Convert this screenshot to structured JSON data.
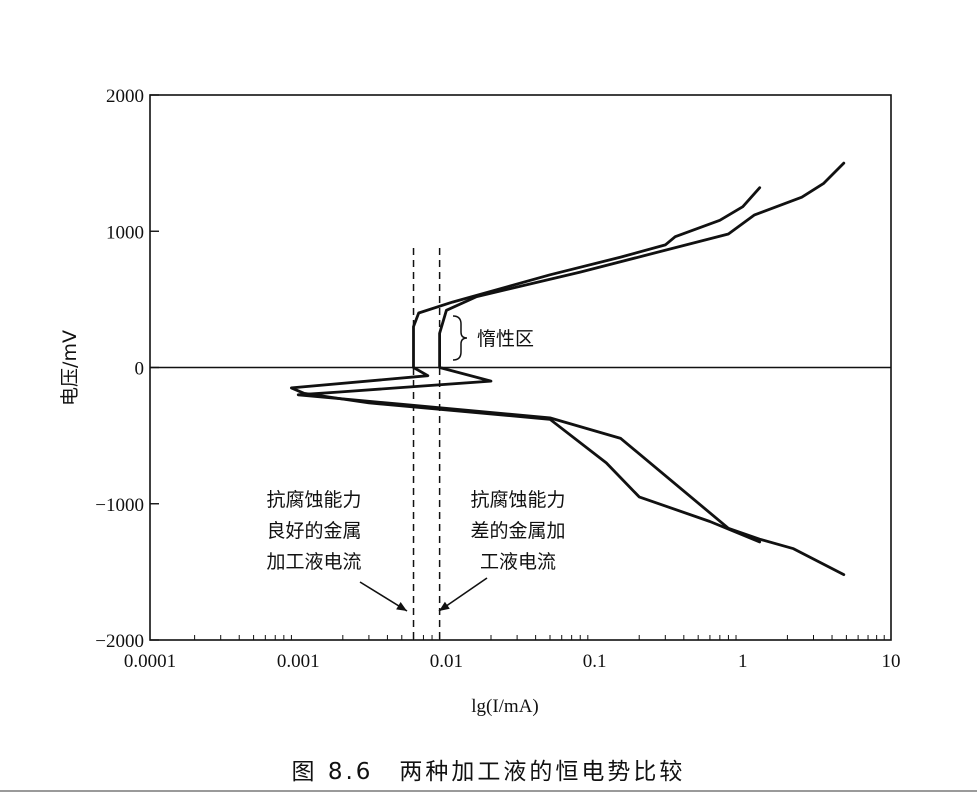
{
  "figure": {
    "caption": "图 8.6　两种加工液的恒电势比较"
  },
  "chart_data": {
    "type": "line",
    "title": "两种加工液的恒电势比较",
    "figure_number": "图 8.6",
    "xlabel": "lg(I/mA)",
    "ylabel": "电压/mV",
    "x_scale": "log",
    "xlim": [
      0.0001,
      10
    ],
    "ylim": [
      -2000,
      2000
    ],
    "x_ticks": [
      "0.0001",
      "0.001",
      "0.01",
      "0.1",
      "1",
      "10"
    ],
    "y_ticks": [
      "2000",
      "1000",
      "0",
      "-1000",
      "-2000"
    ],
    "grid": false,
    "legend": null,
    "reference_lines": [
      {
        "type": "horizontal",
        "y": 0,
        "style": "solid"
      },
      {
        "type": "vertical",
        "x": 0.006,
        "style": "dashed",
        "label": "抗腐蚀能力良好的金属加工液电流"
      },
      {
        "type": "vertical",
        "x": 0.009,
        "style": "dashed",
        "label": "抗腐蚀能力差的金属加工液电流"
      }
    ],
    "annotations": [
      {
        "text": "惰性区",
        "x": 0.016,
        "y": 250,
        "marker": "brace"
      },
      {
        "text": "抗腐蚀能力\n良好的金属\n加工液电流",
        "x": 0.0025,
        "y": -1300,
        "arrow_to": [
          0.006,
          -1800
        ]
      },
      {
        "text": "抗腐蚀能力\n差的金属加\n工液电流",
        "x": 0.03,
        "y": -1200,
        "arrow_to": [
          0.009,
          -1800
        ]
      }
    ],
    "series": [
      {
        "name": "抗腐蚀能力良好的金属加工液",
        "points": [
          [
            1.3,
            -1280
          ],
          [
            0.6,
            -1130
          ],
          [
            0.2,
            -950
          ],
          [
            0.12,
            -700
          ],
          [
            0.05,
            -380
          ],
          [
            0.003,
            -260
          ],
          [
            0.0011,
            -190
          ],
          [
            0.0009,
            -150
          ],
          [
            0.0075,
            -60
          ],
          [
            0.006,
            0
          ],
          [
            0.006,
            300
          ],
          [
            0.0065,
            400
          ],
          [
            0.011,
            480
          ],
          [
            0.05,
            680
          ],
          [
            0.15,
            810
          ],
          [
            0.3,
            900
          ],
          [
            0.35,
            960
          ],
          [
            0.7,
            1080
          ],
          [
            1.0,
            1180
          ],
          [
            1.3,
            1320
          ]
        ]
      },
      {
        "name": "抗腐蚀能力差的金属加工液",
        "points": [
          [
            4.8,
            -1520
          ],
          [
            2.2,
            -1330
          ],
          [
            1.3,
            -1260
          ],
          [
            0.8,
            -1180
          ],
          [
            0.15,
            -520
          ],
          [
            0.05,
            -370
          ],
          [
            0.005,
            -270
          ],
          [
            0.001,
            -200
          ],
          [
            0.0019,
            -180
          ],
          [
            0.02,
            -100
          ],
          [
            0.009,
            0
          ],
          [
            0.009,
            250
          ],
          [
            0.01,
            420
          ],
          [
            0.016,
            520
          ],
          [
            0.08,
            700
          ],
          [
            0.8,
            980
          ],
          [
            1.2,
            1120
          ],
          [
            2.5,
            1250
          ],
          [
            3.5,
            1350
          ],
          [
            4.8,
            1500
          ]
        ]
      }
    ]
  }
}
